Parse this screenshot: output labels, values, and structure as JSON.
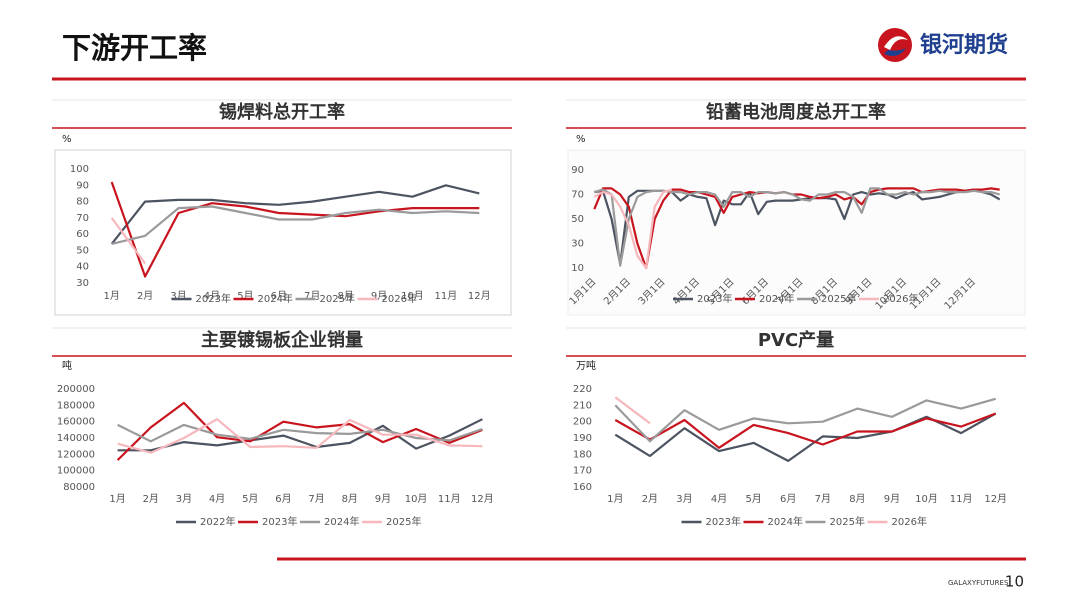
{
  "header": {
    "title": "下游开工率",
    "logo": "银河期货"
  },
  "footer": {
    "brand": "GALAXYFUTURES",
    "page": "10"
  },
  "chart_data": [
    {
      "type": "line",
      "title": "锡焊料总开工率",
      "unit": "%",
      "categories": [
        "1月",
        "2月",
        "3月",
        "4月",
        "5月",
        "6月",
        "7月",
        "8月",
        "9月",
        "10月",
        "11月",
        "12月"
      ],
      "ylim": [
        30,
        100
      ],
      "yticks": [
        30,
        40,
        50,
        60,
        70,
        80,
        90,
        100
      ],
      "series": [
        {
          "name": "2023年",
          "color": "#4d5461",
          "values": [
            54,
            80,
            81,
            81,
            79,
            78,
            80,
            83,
            86,
            83,
            90,
            85
          ]
        },
        {
          "name": "2024年",
          "color": "#c8141e",
          "values": [
            92,
            34,
            73,
            79,
            77,
            73,
            72,
            71,
            74,
            76,
            76,
            76
          ]
        },
        {
          "name": "2025年",
          "color": "#9a9a9a",
          "values": [
            54,
            59,
            76,
            77,
            73,
            69,
            69,
            73,
            75,
            73,
            74,
            73
          ]
        },
        {
          "name": "2026年",
          "color": "#f6b8bc",
          "values": [
            70,
            42,
            null,
            null,
            null,
            null,
            null,
            null,
            null,
            null,
            null,
            null
          ]
        }
      ]
    },
    {
      "type": "line",
      "title": "铅蓄电池周度总开工率",
      "unit": "%",
      "categories": [
        "1月1日",
        null,
        null,
        null,
        "2月1日",
        null,
        null,
        null,
        "3月1日",
        null,
        null,
        null,
        "4月1日",
        null,
        null,
        null,
        "5月1日",
        null,
        null,
        null,
        "6月1日",
        null,
        null,
        null,
        "7月1日",
        null,
        null,
        null,
        "8月1日",
        null,
        null,
        null,
        "9月1日",
        null,
        null,
        null,
        "10月1日",
        null,
        null,
        null,
        "11月1日",
        null,
        null,
        null,
        "12月1日",
        null,
        null,
        null
      ],
      "ylim": [
        10,
        90
      ],
      "yticks": [
        10,
        30,
        50,
        70,
        90
      ],
      "series": [
        {
          "name": "2023年",
          "color": "#4d5461",
          "values": [
            72,
            73,
            50,
            13,
            68,
            73,
            73,
            73,
            73,
            72,
            65,
            70,
            68,
            67,
            45,
            65,
            62,
            62,
            72,
            54,
            64,
            65,
            65,
            65,
            66,
            67,
            67,
            67,
            66,
            50,
            70,
            72,
            70,
            71,
            70,
            67,
            70,
            72,
            66,
            67,
            68,
            70,
            72,
            73,
            74,
            72,
            70,
            66
          ]
        },
        {
          "name": "2024年",
          "color": "#c8141e",
          "values": [
            58,
            75,
            75,
            70,
            60,
            30,
            10,
            50,
            65,
            74,
            74,
            72,
            72,
            70,
            68,
            55,
            68,
            70,
            72,
            71,
            72,
            71,
            72,
            70,
            70,
            68,
            67,
            68,
            70,
            66,
            68,
            62,
            72,
            74,
            75,
            75,
            75,
            75,
            72,
            73,
            74,
            74,
            74,
            73,
            74,
            74,
            75,
            74
          ]
        },
        {
          "name": "2025年",
          "color": "#9a9a9a",
          "values": [
            72,
            74,
            70,
            12,
            50,
            68,
            72,
            73,
            73,
            72,
            72,
            70,
            72,
            72,
            70,
            60,
            72,
            72,
            68,
            72,
            72,
            71,
            72,
            70,
            66,
            65,
            70,
            70,
            72,
            72,
            68,
            55,
            75,
            75,
            70,
            70,
            72,
            70,
            72,
            72,
            73,
            72,
            72,
            72,
            73,
            72,
            72,
            70
          ]
        },
        {
          "name": "2026年",
          "color": "#f6b8bc",
          "values": [
            68,
            72,
            70,
            60,
            45,
            20,
            10,
            60,
            72,
            74,
            null,
            null,
            null,
            null,
            null,
            null,
            null,
            null,
            null,
            null,
            null,
            null,
            null,
            null,
            null,
            null,
            null,
            null,
            null,
            null,
            null,
            null,
            null,
            null,
            null,
            null,
            null,
            null,
            null,
            null,
            null,
            null,
            null,
            null,
            null,
            null,
            null,
            null
          ]
        }
      ]
    },
    {
      "type": "line",
      "title": "主要镀锡板企业销量",
      "unit": "吨",
      "categories": [
        "1月",
        "2月",
        "3月",
        "4月",
        "5月",
        "6月",
        "7月",
        "8月",
        "9月",
        "10月",
        "11月",
        "12月"
      ],
      "ylim": [
        80000,
        200000
      ],
      "yticks": [
        80000,
        100000,
        120000,
        140000,
        160000,
        180000,
        200000
      ],
      "series": [
        {
          "name": "2022年",
          "color": "#4d5461",
          "values": [
            125000,
            125000,
            135000,
            131000,
            137000,
            143000,
            129000,
            134000,
            155000,
            127000,
            143000,
            163000
          ]
        },
        {
          "name": "2023年",
          "color": "#c8141e",
          "values": [
            113000,
            153000,
            183000,
            141000,
            136000,
            160000,
            153000,
            157000,
            135000,
            151000,
            134000,
            150000
          ]
        },
        {
          "name": "2024年",
          "color": "#9a9a9a",
          "values": [
            156000,
            136000,
            156000,
            144000,
            139000,
            150000,
            146000,
            145000,
            150000,
            140000,
            137000,
            151000
          ]
        },
        {
          "name": "2025年",
          "color": "#f6b8bc",
          "values": [
            133000,
            122000,
            140000,
            163000,
            129000,
            130000,
            128000,
            162000,
            144000,
            144000,
            131000,
            130000
          ]
        }
      ]
    },
    {
      "type": "line",
      "title": "PVC产量",
      "unit": "万吨",
      "categories": [
        "1月",
        "2月",
        "3月",
        "4月",
        "5月",
        "6月",
        "7月",
        "8月",
        "9月",
        "10月",
        "11月",
        "12月"
      ],
      "ylim": [
        160,
        220
      ],
      "yticks": [
        160,
        170,
        180,
        190,
        200,
        210,
        220
      ],
      "series": [
        {
          "name": "2023年",
          "color": "#4d5461",
          "values": [
            192,
            179,
            196,
            182,
            187,
            176,
            191,
            190,
            194,
            203,
            193,
            205
          ]
        },
        {
          "name": "2024年",
          "color": "#c8141e",
          "values": [
            201,
            189,
            201,
            184,
            198,
            193,
            186,
            194,
            194,
            202,
            197,
            205
          ]
        },
        {
          "name": "2025年",
          "color": "#9a9a9a",
          "values": [
            210,
            188,
            207,
            195,
            202,
            199,
            200,
            208,
            203,
            213,
            208,
            214
          ]
        },
        {
          "name": "2026年",
          "color": "#f6b8bc",
          "values": [
            215,
            199,
            null,
            null,
            null,
            null,
            null,
            null,
            null,
            null,
            null,
            null
          ]
        }
      ]
    }
  ]
}
